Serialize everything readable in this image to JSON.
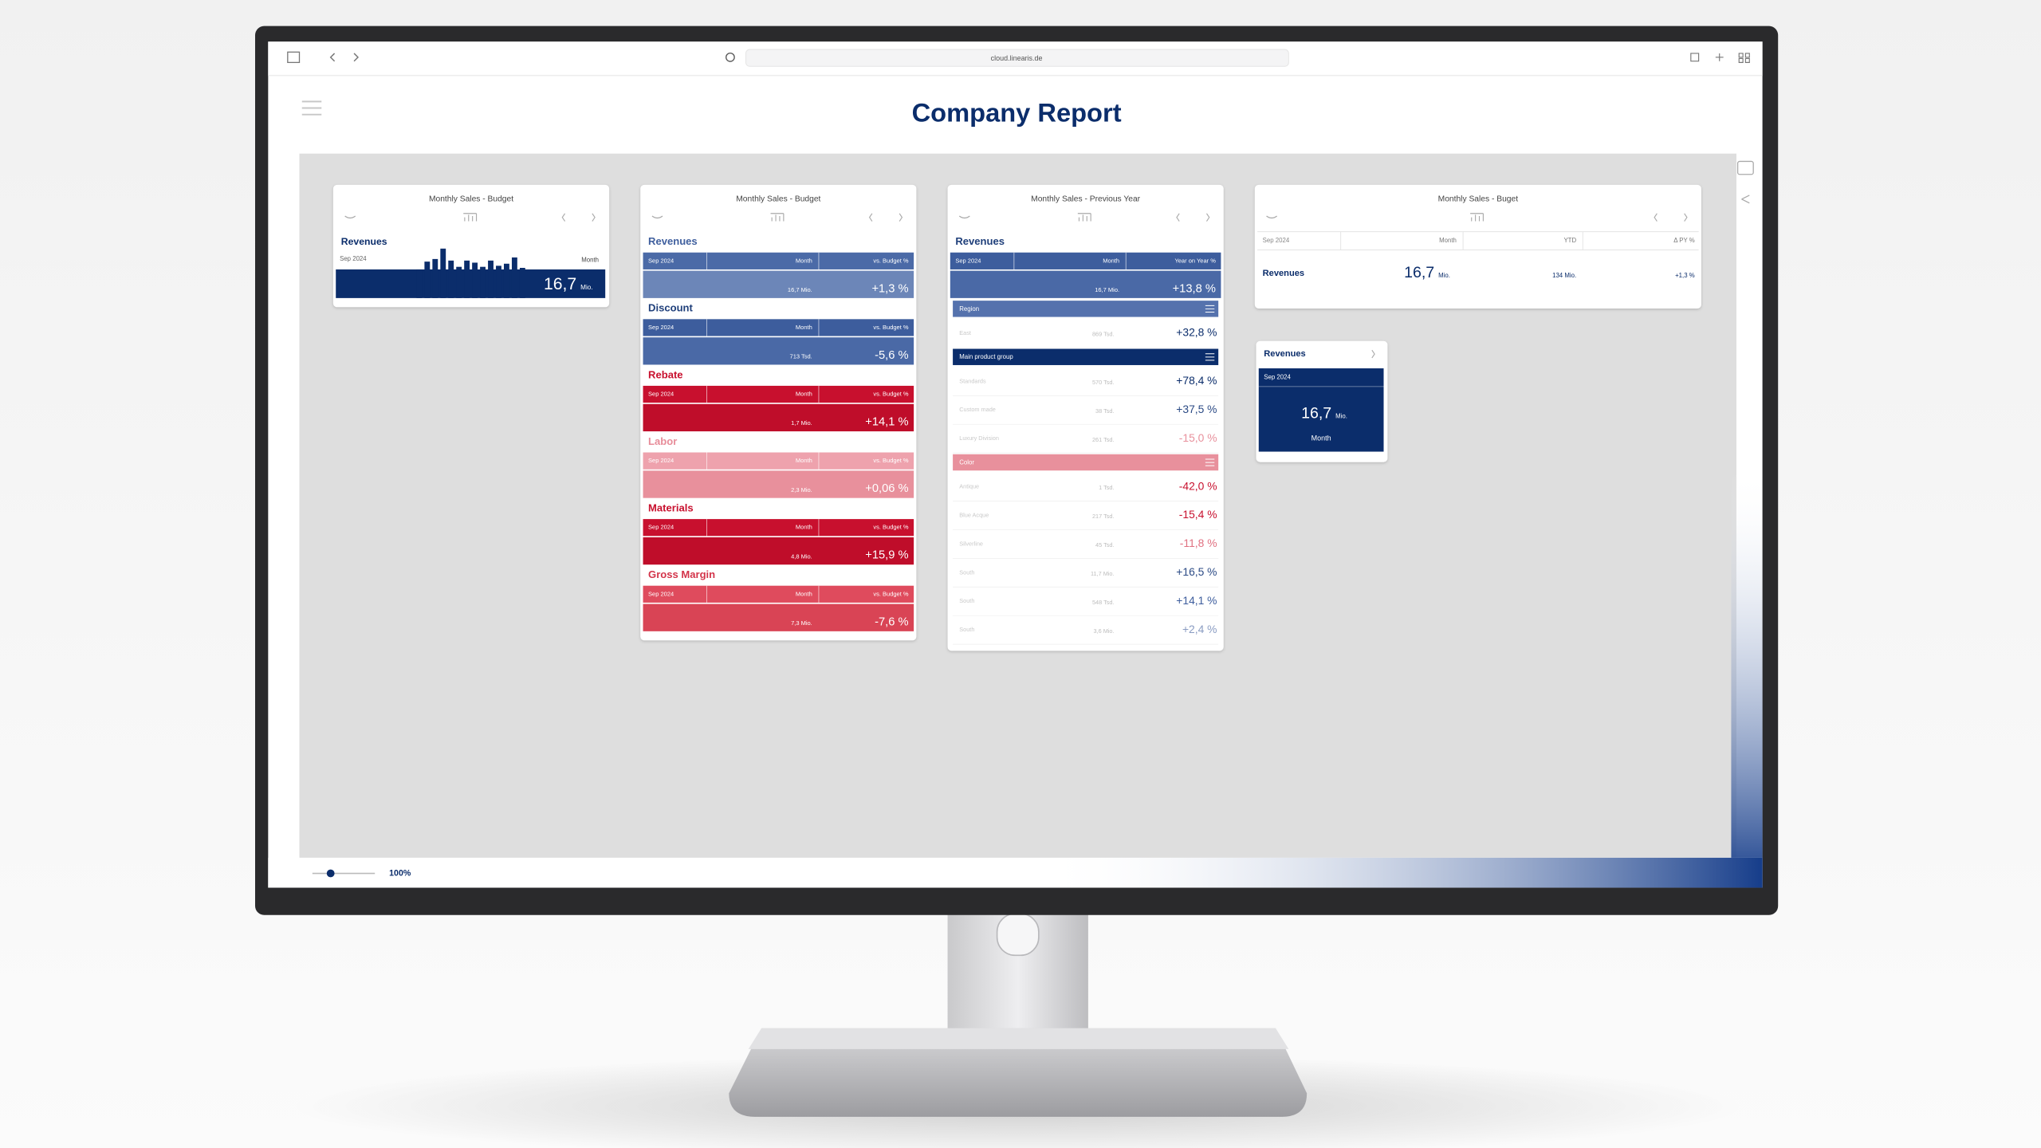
{
  "browser": {
    "url": "cloud.linearis.de"
  },
  "header": {
    "title": "Company Report"
  },
  "footer": {
    "zoom": "100%"
  },
  "cards": [
    {
      "title": "Monthly Sales - Budget",
      "kpi": "Revenues",
      "period": "Sep 2024",
      "column": "Month",
      "value": "16,7",
      "unit": "Mio.",
      "bars": [
        0.55,
        0.7,
        0.75,
        0.95,
        0.72,
        0.6,
        0.72,
        0.68,
        0.6,
        0.72,
        0.62,
        0.66,
        0.78,
        0.58
      ]
    },
    {
      "title": "Monthly Sales - Budget",
      "sections": [
        {
          "name": "Revenues",
          "period": "Sep 2024",
          "column": "Month",
          "comparison": "vs. Budget %",
          "value": "16,7 Mio.",
          "delta": "+1,3 %",
          "colors": [
            "#3f5f9e",
            "#4b6aa7",
            "#6c86b8"
          ]
        },
        {
          "name": "Discount",
          "period": "Sep 2024",
          "column": "Month",
          "comparison": "vs. Budget %",
          "value": "713 Tsd.",
          "delta": "-5,6 %",
          "colors": [
            "#1f3f7a",
            "#3d5d9d",
            "#4a69a6"
          ]
        },
        {
          "name": "Rebate",
          "period": "Sep 2024",
          "column": "Month",
          "comparison": "vs. Budget %",
          "value": "1,7 Mio.",
          "delta": "+14,1 %",
          "colors": [
            "#c8102e",
            "#c8102e",
            "#bf0d2a"
          ]
        },
        {
          "name": "Labor",
          "period": "Sep 2024",
          "column": "Month",
          "comparison": "vs. Budget %",
          "value": "2,3 Mio.",
          "delta": "+0,06 %",
          "colors": [
            "#e78c99",
            "#eea2ad",
            "#e8909c"
          ]
        },
        {
          "name": "Materials",
          "period": "Sep 2024",
          "column": "Month",
          "comparison": "vs. Budget %",
          "value": "4,8 Mio.",
          "delta": "+15,9 %",
          "colors": [
            "#c8102e",
            "#c8102e",
            "#bf0d2a"
          ]
        },
        {
          "name": "Gross Margin",
          "period": "Sep 2024",
          "column": "Month",
          "comparison": "vs. Budget %",
          "value": "7,3 Mio.",
          "delta": "-7,6 %",
          "colors": [
            "#d3344a",
            "#df4b5d",
            "#d94455"
          ]
        }
      ]
    },
    {
      "title": "Monthly Sales - Previous Year",
      "sections": [
        {
          "name": "Revenues",
          "period": "Sep 2024",
          "column": "Month",
          "comparison": "Year on Year %",
          "value": "16,7 Mio.",
          "delta": "+13,8 %",
          "colors": [
            "#1f3f7a",
            "#3d5d9d",
            "#4a69a6"
          ]
        }
      ],
      "groups": [
        {
          "name": "Region",
          "color": "#5572ad",
          "rows": [
            {
              "label": "East",
              "amount": "869 Tsd.",
              "delta": "+32,8 %",
              "color": "#0b2d6b"
            }
          ]
        },
        {
          "name": "Main product group",
          "color": "#0b2d6b",
          "rows": [
            {
              "label": "Standards",
              "amount": "570 Tsd.",
              "delta": "+78,4 %",
              "color": "#0b2d6b"
            },
            {
              "label": "Custom made",
              "amount": "38 Tsd.",
              "delta": "+37,5 %",
              "color": "#2b4a85"
            },
            {
              "label": "Luxury Division",
              "amount": "261 Tsd.",
              "delta": "-15,0 %",
              "color": "#e8909c"
            }
          ]
        },
        {
          "name": "Color",
          "color": "#e8909c",
          "rows": [
            {
              "label": "Antique",
              "amount": "1 Tsd.",
              "delta": "-42,0 %",
              "color": "#c8102e"
            },
            {
              "label": "Blue Acque",
              "amount": "217 Tsd.",
              "delta": "-15,4 %",
              "color": "#c8102e"
            },
            {
              "label": "Silverline",
              "amount": "45 Tsd.",
              "delta": "-11,8 %",
              "color": "#e07080"
            },
            {
              "label": "South",
              "amount": "11,7 Mio.",
              "delta": "+16,5 %",
              "color": "#2b4a85"
            },
            {
              "label": "South",
              "amount": "548 Tsd.",
              "delta": "+14,1 %",
              "color": "#3d5d9d"
            },
            {
              "label": "South",
              "amount": "3,6 Mio.",
              "delta": "+2,4 %",
              "color": "#8a9cc2"
            }
          ]
        }
      ]
    },
    {
      "title": "Monthly Sales - Buget",
      "period": "Sep 2024",
      "columns": [
        "Month",
        "YTD",
        "Δ PY %"
      ],
      "kpi": "Revenues",
      "value": "16,7",
      "unit": "Mio.",
      "ytd": "134 Mio.",
      "delta": "+1,3 %"
    },
    {
      "kpi": "Revenues",
      "period": "Sep 2024",
      "value": "16,7",
      "unit": "Mio.",
      "column": "Month"
    }
  ]
}
